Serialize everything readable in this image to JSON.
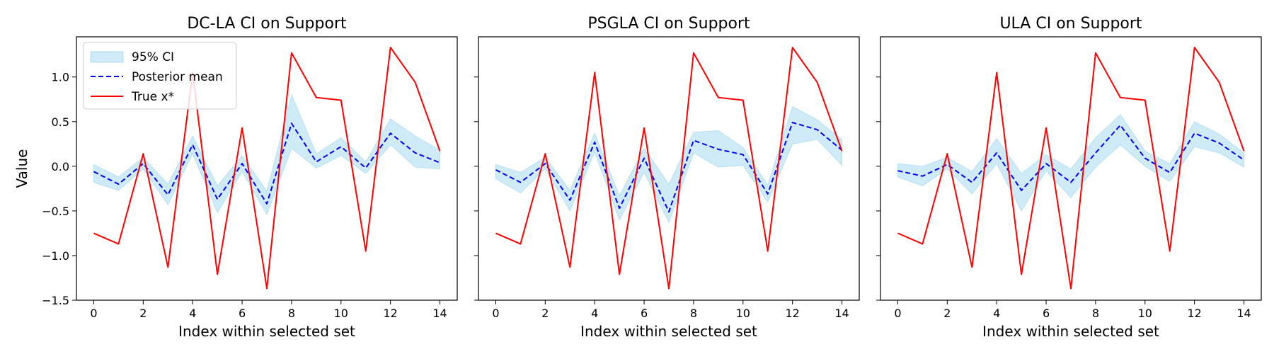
{
  "chart_data": [
    {
      "type": "line",
      "title": "DC-LA CI on Support",
      "xlabel": "Index within selected set",
      "ylabel": "Value",
      "xlim": [
        -0.7,
        14.7
      ],
      "ylim": [
        -1.5,
        1.45
      ],
      "xticks": [
        0,
        2,
        4,
        6,
        8,
        10,
        12,
        14
      ],
      "yticks": [
        -1.5,
        -1.0,
        -0.5,
        0.0,
        0.5,
        1.0
      ],
      "ytick_labels": [
        "−1.5",
        "−1.0",
        "−0.5",
        "0.0",
        "0.5",
        "1.0"
      ],
      "show_yticklabels": true,
      "legend": {
        "placement": "upper-left",
        "entries": [
          "95% CI",
          "Posterior mean",
          "True x*"
        ]
      },
      "colors": {
        "ci": "#87CEEB",
        "mean": "#0000ff",
        "true": "#ff0000"
      },
      "x": [
        0,
        1,
        2,
        3,
        4,
        5,
        6,
        7,
        8,
        9,
        10,
        11,
        12,
        13,
        14
      ],
      "series": [
        {
          "name": "Posterior mean",
          "values": [
            -0.06,
            -0.2,
            0.03,
            -0.32,
            0.24,
            -0.37,
            0.03,
            -0.42,
            0.48,
            0.05,
            0.22,
            -0.02,
            0.37,
            0.15,
            0.04
          ]
        },
        {
          "name": "True x*",
          "values": [
            -0.75,
            -0.87,
            0.14,
            -1.13,
            1.05,
            -1.21,
            0.43,
            -1.37,
            1.27,
            0.77,
            0.74,
            -0.95,
            1.33,
            0.94,
            0.17
          ]
        }
      ],
      "ci": {
        "name": "95% CI",
        "lower": [
          -0.18,
          -0.27,
          -0.03,
          -0.43,
          0.14,
          -0.52,
          -0.06,
          -0.54,
          0.2,
          -0.02,
          0.12,
          -0.08,
          0.24,
          -0.01,
          -0.03
        ],
        "upper": [
          0.02,
          -0.12,
          0.1,
          -0.2,
          0.34,
          -0.22,
          0.12,
          -0.28,
          0.8,
          0.14,
          0.32,
          0.05,
          0.53,
          0.34,
          0.18
        ]
      }
    },
    {
      "type": "line",
      "title": "PSGLA CI on Support",
      "xlabel": "Index within selected set",
      "ylabel": "",
      "xlim": [
        -0.7,
        14.7
      ],
      "ylim": [
        -1.5,
        1.45
      ],
      "xticks": [
        0,
        2,
        4,
        6,
        8,
        10,
        12,
        14
      ],
      "yticks": [
        -1.5,
        -1.0,
        -0.5,
        0.0,
        0.5,
        1.0
      ],
      "ytick_labels": [
        "",
        "",
        "",
        "",
        "",
        ""
      ],
      "show_yticklabels": false,
      "legend": null,
      "colors": {
        "ci": "#87CEEB",
        "mean": "#0000ff",
        "true": "#ff0000"
      },
      "x": [
        0,
        1,
        2,
        3,
        4,
        5,
        6,
        7,
        8,
        9,
        10,
        11,
        12,
        13,
        14
      ],
      "series": [
        {
          "name": "Posterior mean",
          "values": [
            -0.04,
            -0.18,
            0.03,
            -0.38,
            0.27,
            -0.47,
            0.09,
            -0.51,
            0.29,
            0.19,
            0.13,
            -0.31,
            0.49,
            0.41,
            0.18
          ]
        },
        {
          "name": "True x*",
          "values": [
            -0.75,
            -0.87,
            0.14,
            -1.13,
            1.05,
            -1.21,
            0.43,
            -1.37,
            1.27,
            0.77,
            0.74,
            -0.95,
            1.33,
            0.94,
            0.17
          ]
        }
      ],
      "ci": {
        "name": "95% CI",
        "lower": [
          -0.14,
          -0.3,
          -0.03,
          -0.5,
          0.16,
          -0.6,
          -0.07,
          -0.63,
          0.15,
          -0.01,
          0.01,
          -0.4,
          0.25,
          0.3,
          0.01
        ],
        "upper": [
          0.02,
          -0.07,
          0.1,
          -0.27,
          0.37,
          -0.33,
          0.2,
          -0.2,
          0.38,
          0.4,
          0.21,
          -0.21,
          0.67,
          0.52,
          0.3
        ]
      }
    },
    {
      "type": "line",
      "title": "ULA CI on Support",
      "xlabel": "Index within selected set",
      "ylabel": "",
      "xlim": [
        -0.7,
        14.7
      ],
      "ylim": [
        -1.5,
        1.45
      ],
      "xticks": [
        0,
        2,
        4,
        6,
        8,
        10,
        12,
        14
      ],
      "yticks": [
        -1.5,
        -1.0,
        -0.5,
        0.0,
        0.5,
        1.0
      ],
      "ytick_labels": [
        "",
        "",
        "",
        "",
        "",
        ""
      ],
      "show_yticklabels": false,
      "legend": null,
      "colors": {
        "ci": "#87CEEB",
        "mean": "#0000ff",
        "true": "#ff0000"
      },
      "x": [
        0,
        1,
        2,
        3,
        4,
        5,
        6,
        7,
        8,
        9,
        10,
        11,
        12,
        13,
        14
      ],
      "series": [
        {
          "name": "Posterior mean",
          "values": [
            -0.05,
            -0.11,
            0.02,
            -0.18,
            0.15,
            -0.27,
            0.03,
            -0.18,
            0.15,
            0.46,
            0.09,
            -0.07,
            0.37,
            0.26,
            0.07
          ]
        },
        {
          "name": "True x*",
          "values": [
            -0.75,
            -0.87,
            0.14,
            -1.13,
            1.05,
            -1.21,
            0.43,
            -1.37,
            1.27,
            0.77,
            0.74,
            -0.95,
            1.33,
            0.94,
            0.17
          ]
        }
      ],
      "ci": {
        "name": "95% CI",
        "lower": [
          -0.12,
          -0.22,
          -0.03,
          -0.31,
          0.03,
          -0.5,
          -0.05,
          -0.35,
          -0.01,
          0.24,
          0.0,
          -0.17,
          0.22,
          0.15,
          -0.01
        ],
        "upper": [
          0.03,
          0.0,
          0.1,
          -0.06,
          0.31,
          -0.08,
          0.13,
          -0.03,
          0.32,
          0.58,
          0.17,
          0.03,
          0.5,
          0.36,
          0.15
        ]
      }
    }
  ]
}
